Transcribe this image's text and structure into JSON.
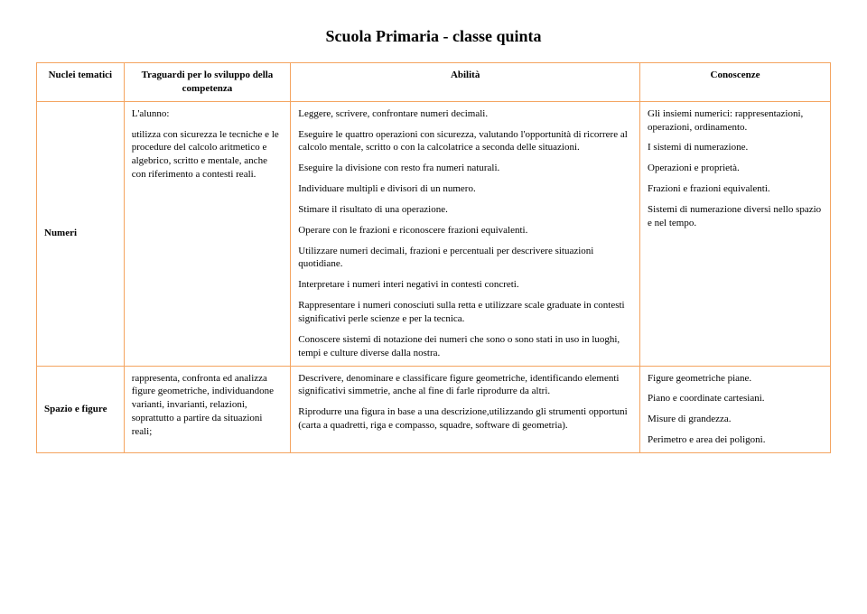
{
  "title": "Scuola Primaria - classe quinta",
  "headers": {
    "c1": "Nuclei tematici",
    "c2": "Traguardi per lo sviluppo della competenza",
    "c3": "Abilità",
    "c4": "Conoscenze"
  },
  "rows": [
    {
      "label": "Numeri",
      "traguardi": [
        "L'alunno:",
        "utilizza con sicurezza le tecniche e le procedure del calcolo aritmetico e algebrico, scritto e mentale, anche con riferimento a contesti reali."
      ],
      "abilita": [
        "Leggere, scrivere, confrontare numeri decimali.",
        "Eseguire le quattro operazioni con sicurezza, valutando l'opportunità di ricorrere al calcolo mentale, scritto o con la calcolatrice a seconda delle situazioni.",
        "Eseguire la divisione con resto fra numeri naturali.",
        "Individuare multipli e divisori di un numero.",
        "Stimare il risultato di una operazione.",
        "Operare con le frazioni e riconoscere frazioni equivalenti.",
        "Utilizzare numeri decimali, frazioni e percentuali per descrivere situazioni quotidiane.",
        "Interpretare i numeri interi negativi in contesti concreti.",
        "Rappresentare i numeri conosciuti sulla retta e utilizzare scale graduate in contesti  significativi perle scienze e per la tecnica.",
        "Conoscere sistemi di notazione dei numeri che sono o sono stati in uso in luoghi, tempi e culture diverse dalla nostra."
      ],
      "conoscenze": [
        "Gli insiemi numerici: rappresentazioni, operazioni, ordinamento.",
        "I sistemi di numerazione.",
        "Operazioni e proprietà.",
        "Frazioni e frazioni equivalenti.",
        "Sistemi di numerazione diversi nello spazio e nel tempo."
      ]
    },
    {
      "label": "Spazio e figure",
      "traguardi": [
        "rappresenta, confronta ed analizza figure geometriche, individuandone varianti, invarianti, relazioni, soprattutto a partire da situazioni reali;"
      ],
      "abilita": [
        "Descrivere, denominare e classificare figure geometriche, identificando elementi significativi simmetrie, anche al fine di farle riprodurre da altri.",
        "Riprodurre una figura in base a una descrizione,utilizzando gli strumenti opportuni (carta a quadretti, riga e compasso, squadre, software di geometria)."
      ],
      "conoscenze": [
        "Figure geometriche piane.",
        "Piano e coordinate cartesiani.",
        "Misure di grandezza.",
        "Perimetro e area dei poligoni."
      ]
    }
  ]
}
